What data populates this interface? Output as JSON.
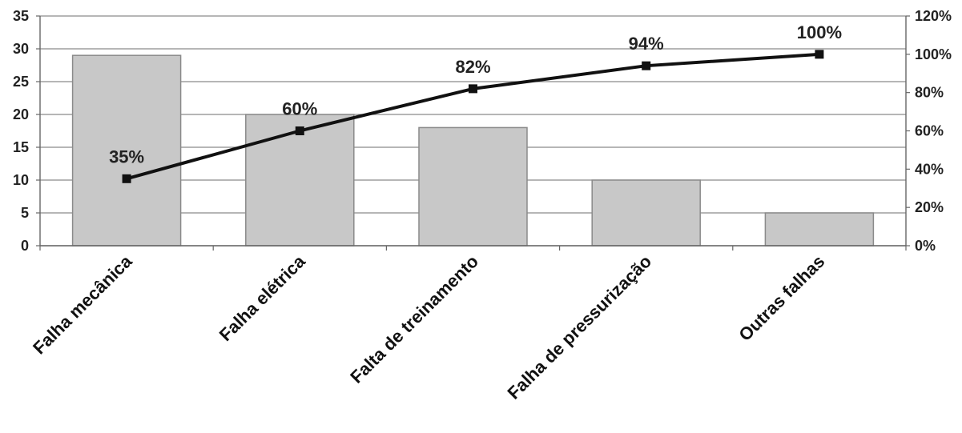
{
  "chart_data": {
    "type": "bar",
    "categories": [
      "Falha mecânica",
      "Falha elétrica",
      "Falta de treinamento",
      "Falha de pressurização",
      "Outras falhas"
    ],
    "series": [
      {
        "type": "bar",
        "values": [
          29,
          20,
          18,
          10,
          5
        ],
        "color": "#c8c8c8"
      },
      {
        "type": "line",
        "axis": "right",
        "values": [
          35,
          60,
          82,
          94,
          100
        ],
        "labels": [
          "35%",
          "60%",
          "82%",
          "94%",
          "100%"
        ],
        "color": "#111111"
      }
    ],
    "y_left": {
      "ylim": [
        0,
        35
      ],
      "ticks": [
        "0",
        "5",
        "10",
        "15",
        "20",
        "25",
        "30",
        "35"
      ]
    },
    "y_right": {
      "ylim": [
        0,
        120
      ],
      "ticks": [
        "0%",
        "20%",
        "40%",
        "60%",
        "80%",
        "100%",
        "120%"
      ]
    },
    "grid": true,
    "legend": "none"
  }
}
